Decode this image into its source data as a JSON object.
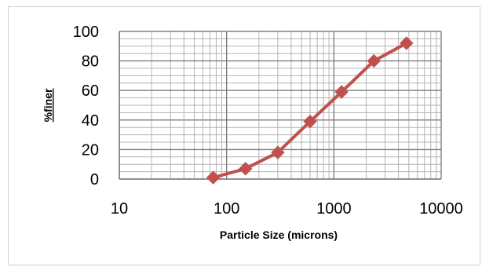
{
  "chart_data": {
    "type": "line",
    "x_scale": "log",
    "xlim": [
      10,
      10000
    ],
    "ylim": [
      0,
      100
    ],
    "x_ticks": [
      10,
      100,
      1000,
      10000
    ],
    "x_tick_labels": [
      "10",
      "100",
      "1000",
      "10000"
    ],
    "y_ticks": [
      0,
      20,
      40,
      60,
      80,
      100
    ],
    "y_tick_labels": [
      "0",
      "20",
      "40",
      "60",
      "80",
      "100"
    ],
    "xlabel": "Particle Size (microns)",
    "ylabel": "%finer",
    "grid": true,
    "legend": "none",
    "series": [
      {
        "color": "#c0504d",
        "marker": "diamond",
        "x": [
          75,
          150,
          300,
          600,
          1180,
          2360,
          4750
        ],
        "y": [
          1,
          7,
          18,
          39,
          59,
          80,
          92
        ]
      }
    ]
  }
}
